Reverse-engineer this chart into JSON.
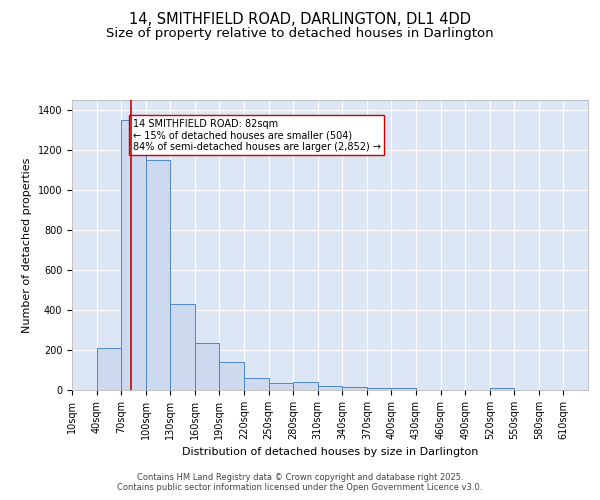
{
  "title": "14, SMITHFIELD ROAD, DARLINGTON, DL1 4DD",
  "subtitle": "Size of property relative to detached houses in Darlington",
  "xlabel": "Distribution of detached houses by size in Darlington",
  "ylabel": "Number of detached properties",
  "bin_edges": [
    10,
    40,
    70,
    100,
    130,
    160,
    190,
    220,
    250,
    280,
    310,
    340,
    370,
    400,
    430,
    460,
    490,
    520,
    550,
    580,
    610
  ],
  "bar_heights": [
    0,
    210,
    1350,
    1150,
    430,
    235,
    140,
    60,
    35,
    40,
    20,
    15,
    12,
    12,
    0,
    0,
    0,
    12,
    0,
    0
  ],
  "bar_facecolor": "#ccd9ee",
  "bar_edgecolor": "#4f86c6",
  "red_line_x": 82,
  "red_line_color": "#cc0000",
  "annotation_text": "14 SMITHFIELD ROAD: 82sqm\n← 15% of detached houses are smaller (504)\n84% of semi-detached houses are larger (2,852) →",
  "annotation_box_edgecolor": "#cc0000",
  "annotation_box_facecolor": "#ffffff",
  "background_color": "#dce6f5",
  "ylim": [
    0,
    1450
  ],
  "yticks": [
    0,
    200,
    400,
    600,
    800,
    1000,
    1200,
    1400
  ],
  "grid_color": "#ffffff",
  "footer_line1": "Contains HM Land Registry data © Crown copyright and database right 2025.",
  "footer_line2": "Contains public sector information licensed under the Open Government Licence v3.0.",
  "title_fontsize": 10.5,
  "subtitle_fontsize": 9.5,
  "tick_fontsize": 7,
  "ylabel_fontsize": 8,
  "xlabel_fontsize": 8,
  "annotation_fontsize": 7,
  "footer_fontsize": 6
}
